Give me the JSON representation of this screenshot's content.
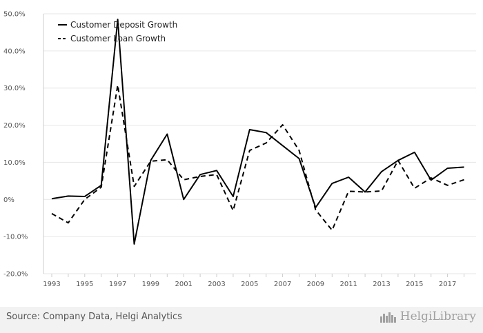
{
  "chart_data": {
    "type": "line",
    "x": [
      1993,
      1994,
      1995,
      1996,
      1997,
      1998,
      1999,
      2000,
      2001,
      2002,
      2003,
      2004,
      2005,
      2006,
      2007,
      2008,
      2009,
      2010,
      2011,
      2012,
      2013,
      2014,
      2015,
      2016,
      2017,
      2018
    ],
    "x_tick_labels": [
      "1993",
      "1995",
      "1997",
      "1999",
      "2001",
      "2003",
      "2005",
      "2007",
      "2009",
      "2011",
      "2013",
      "2015",
      "2017"
    ],
    "y_tick_labels": [
      "50.0%",
      "40.0%",
      "30.0%",
      "20.0%",
      "10.0%",
      "0%",
      "-10.0%",
      "-20.0%"
    ],
    "ylim": [
      -20,
      50
    ],
    "y_unit": "%",
    "grid": "horizontal",
    "legend_position": "top-left",
    "series": [
      {
        "name": "Customer Deposit Growth",
        "style": "solid",
        "values": [
          0.2,
          0.9,
          0.8,
          3.8,
          48.5,
          -12.0,
          10.5,
          17.6,
          0.0,
          6.7,
          7.8,
          0.8,
          18.8,
          18.0,
          14.5,
          11.0,
          -2.2,
          4.3,
          6.0,
          2.0,
          7.5,
          10.5,
          12.7,
          5.2,
          8.4,
          8.7
        ]
      },
      {
        "name": "Customer Loan Growth",
        "style": "dashed",
        "values": [
          -3.8,
          -6.3,
          0.0,
          3.3,
          30.8,
          3.5,
          10.3,
          10.7,
          5.3,
          6.2,
          6.7,
          -3.0,
          13.2,
          15.2,
          20.1,
          13.2,
          -2.8,
          -8.3,
          2.2,
          2.0,
          2.3,
          10.5,
          3.0,
          5.8,
          3.8,
          5.3
        ]
      }
    ]
  },
  "footer": {
    "source": "Source: Company Data, Helgi Analytics",
    "brand": "HelgiLibrary"
  },
  "colors": {
    "line": "#000000",
    "grid": "#e6e6e6",
    "footer_bg": "#f2f2f2"
  }
}
